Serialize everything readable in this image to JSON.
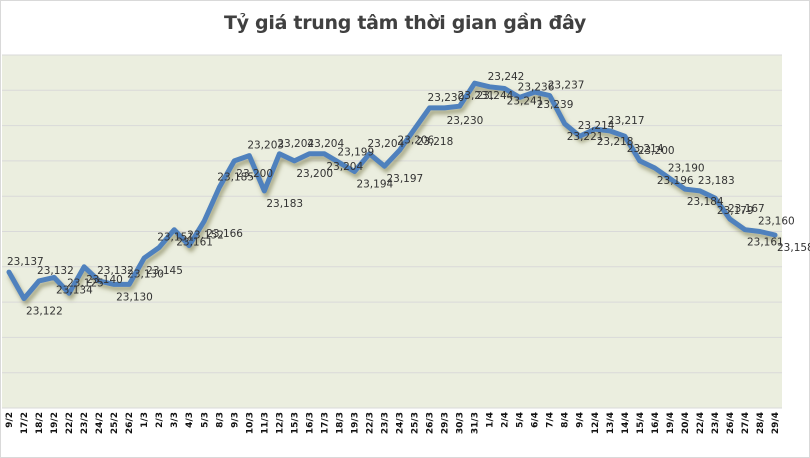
{
  "title": "Tỷ giá trung tâm thời gian gần đây",
  "colors": {
    "line": "#4F81BD",
    "plot_background": "#EBEEDF",
    "gridline": "#D9D9D9",
    "label_text": "#333333"
  },
  "chart_data": {
    "type": "line",
    "title": "Tỷ giá trung tâm thời gian gần đây",
    "xlabel": "",
    "ylabel": "",
    "ylim": [
      23060,
      23260
    ],
    "y_grid_step": 20,
    "grid": true,
    "legend": "none",
    "categories": [
      "9/2",
      "17/2",
      "18/2",
      "19/2",
      "22/2",
      "23/2",
      "24/2",
      "25/2",
      "26/2",
      "1/3",
      "2/3",
      "3/3",
      "4/3",
      "5/3",
      "8/3",
      "9/3",
      "10/3",
      "11/3",
      "12/3",
      "15/3",
      "16/3",
      "17/3",
      "18/3",
      "19/3",
      "22/3",
      "23/3",
      "24/3",
      "25/3",
      "26/3",
      "29/3",
      "30/3",
      "31/3",
      "1/4",
      "2/4",
      "5/4",
      "6/4",
      "7/4",
      "8/4",
      "9/4",
      "12/4",
      "13/4",
      "14/4",
      "15/4",
      "16/4",
      "19/4",
      "20/4",
      "22/4",
      "23/4",
      "26/4",
      "27/4",
      "28/4",
      "29/4"
    ],
    "series": [
      {
        "name": "Tỷ giá trung tâm",
        "values": [
          23137,
          23122,
          23132,
          23134,
          23125,
          23140,
          23132,
          23130,
          23130,
          23145,
          23151,
          23161,
          23152,
          23166,
          23185,
          23200,
          23203,
          23183,
          23204,
          23200,
          23204,
          23204,
          23199,
          23194,
          23204,
          23197,
          23206,
          23218,
          23230,
          23230,
          23231,
          23244,
          23242,
          23241,
          23236,
          23239,
          23237,
          23221,
          23214,
          23218,
          23217,
          23214,
          23200,
          23196,
          23190,
          23184,
          23183,
          23179,
          23167,
          23161,
          23160,
          23158
        ]
      }
    ]
  }
}
